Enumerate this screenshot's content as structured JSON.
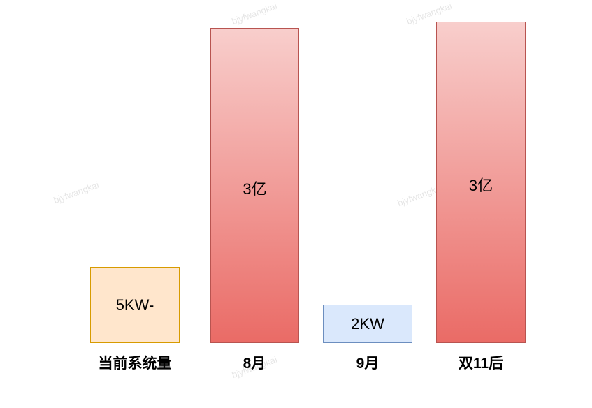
{
  "watermark_text": "bjyfwangkai",
  "bars": [
    {
      "label": "5KW-",
      "category": "当前系统量",
      "style": "peach"
    },
    {
      "label": "3亿",
      "category": "8月",
      "style": "red"
    },
    {
      "label": "2KW",
      "category": "9月",
      "style": "blue"
    },
    {
      "label": "3亿",
      "category": "双11后",
      "style": "red"
    }
  ],
  "colors": {
    "peach_fill": "#ffe6cc",
    "peach_border": "#d79b00",
    "red_top": "#f8cecc",
    "red_bottom": "#ea6b66",
    "red_border": "#b85450",
    "blue_fill": "#dae8fc",
    "blue_border": "#6c8ebf"
  }
}
